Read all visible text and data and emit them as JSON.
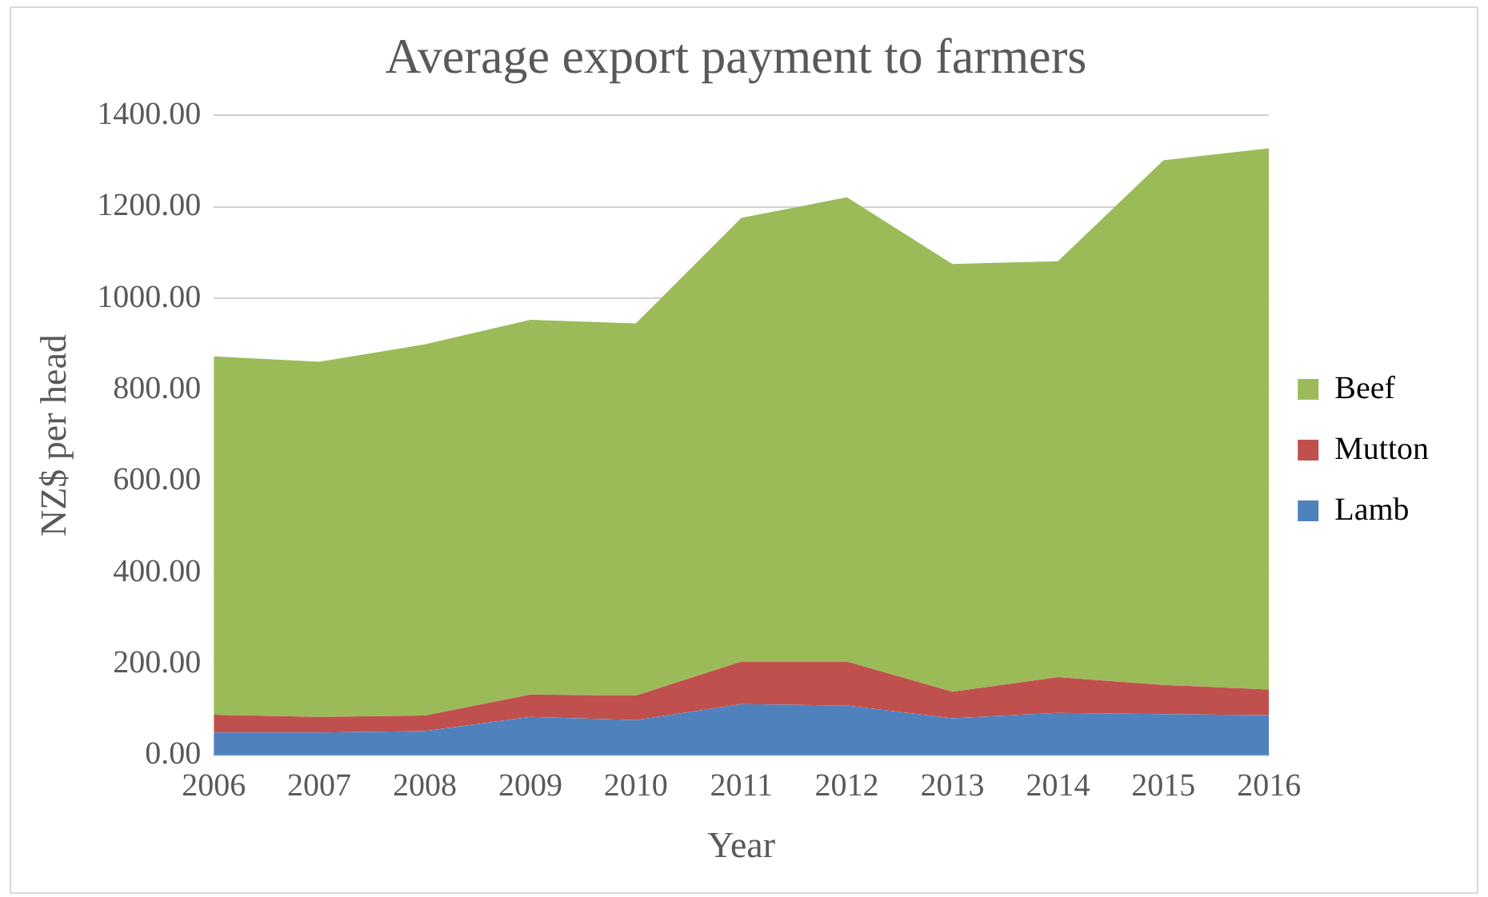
{
  "chart_data": {
    "type": "area",
    "title": "Average export payment to farmers",
    "xlabel": "Year",
    "ylabel": "NZ$ per head",
    "categories": [
      "2006",
      "2007",
      "2008",
      "2009",
      "2010",
      "2011",
      "2012",
      "2013",
      "2014",
      "2015",
      "2016"
    ],
    "stacked": true,
    "legend": "right",
    "grid": "y",
    "ylim": [
      0,
      1400
    ],
    "yticks": [
      {
        "value": 0,
        "label": "0.00"
      },
      {
        "value": 200,
        "label": "200.00"
      },
      {
        "value": 400,
        "label": "400.00"
      },
      {
        "value": 600,
        "label": "600.00"
      },
      {
        "value": 800,
        "label": "800.00"
      },
      {
        "value": 1000,
        "label": "1000.00"
      },
      {
        "value": 1200,
        "label": "1200.00"
      },
      {
        "value": 1400,
        "label": "1400.00"
      }
    ],
    "series": [
      {
        "name": "Lamb",
        "color": "#4f81bd",
        "values": [
          50,
          50,
          53,
          84,
          77,
          112,
          109,
          81,
          93,
          90,
          88
        ]
      },
      {
        "name": "Mutton",
        "color": "#c0504d",
        "values": [
          39,
          34,
          34,
          49,
          54,
          93,
          96,
          58,
          78,
          64,
          56
        ]
      },
      {
        "name": "Beef",
        "color": "#9bbb59",
        "values": [
          784,
          777,
          812,
          820,
          814,
          971,
          1016,
          936,
          910,
          1148,
          1184
        ]
      }
    ]
  }
}
